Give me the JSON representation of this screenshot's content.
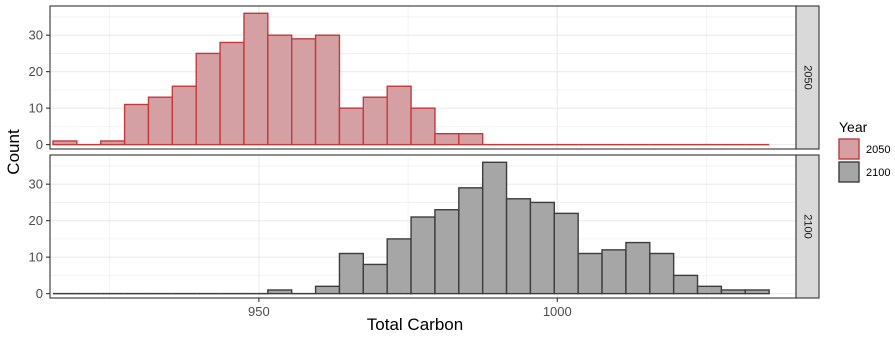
{
  "chart_data": {
    "type": "bar",
    "facet_by": "Year",
    "xlabel": "Total Carbon",
    "ylabel": "Count",
    "x_ticks": [
      950,
      1000
    ],
    "y_ticks": [
      0,
      10,
      20,
      30
    ],
    "xlim": [
      915.0,
      1040.0
    ],
    "ylim": [
      -1.2,
      38
    ],
    "grid": true,
    "bin_width": 4,
    "bin_starts": [
      915.5,
      919.5,
      923.5,
      927.5,
      931.5,
      935.5,
      939.5,
      943.5,
      947.5,
      951.5,
      955.5,
      959.5,
      963.5,
      967.5,
      971.5,
      975.5,
      979.5,
      983.5,
      987.5,
      991.5,
      995.5,
      999.5,
      1003.5,
      1007.5,
      1011.5,
      1015.5,
      1019.5,
      1023.5,
      1027.5,
      1031.5
    ],
    "legend": {
      "title": "Year",
      "position": "right",
      "entries": [
        {
          "label": "2050",
          "fill": "#d5a0a4",
          "stroke": "#c23b3b"
        },
        {
          "label": "2100",
          "fill": "#a6a6a6",
          "stroke": "#3d3d3d"
        }
      ]
    },
    "series": [
      {
        "name": "2050",
        "strip_label": "2050",
        "fill": "#d5a0a4",
        "stroke": "#c23b3b",
        "values": [
          1,
          0,
          1,
          11,
          13,
          16,
          25,
          28,
          36,
          30,
          29,
          30,
          10,
          13,
          16,
          10,
          3,
          3,
          0,
          0,
          0,
          0,
          0,
          0,
          0,
          0,
          0,
          0,
          0,
          0
        ]
      },
      {
        "name": "2100",
        "strip_label": "2100",
        "fill": "#a6a6a6",
        "stroke": "#3d3d3d",
        "values": [
          0,
          0,
          0,
          0,
          0,
          0,
          0,
          0,
          0,
          1,
          0,
          2,
          11,
          8,
          15,
          21,
          23,
          29,
          36,
          26,
          25,
          22,
          11,
          12,
          14,
          11,
          5,
          2,
          1,
          1
        ]
      }
    ]
  }
}
